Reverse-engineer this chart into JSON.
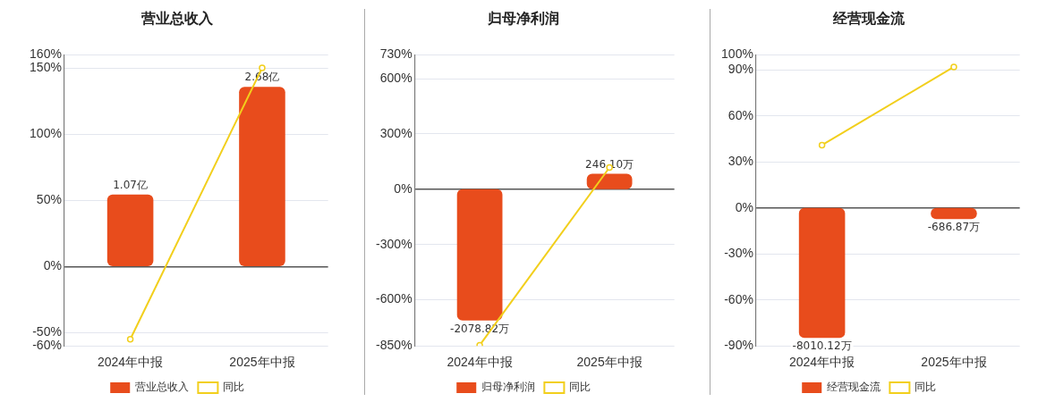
{
  "chart_data": [
    {
      "type": "bar",
      "title": "营业总收入",
      "categories": [
        "2024年中报",
        "2025年中报"
      ],
      "ylim": [
        -60,
        160
      ],
      "yticks": [
        {
          "value": -60,
          "label": "-60%"
        },
        {
          "value": -50,
          "label": "-50%"
        },
        {
          "value": 0,
          "label": "0%"
        },
        {
          "value": 50,
          "label": "50%"
        },
        {
          "value": 100,
          "label": "100%"
        },
        {
          "value": 150,
          "label": "150%"
        },
        {
          "value": 160,
          "label": "160%"
        }
      ],
      "y2lim": [
        -1.19,
        3.16
      ],
      "grid": "y",
      "legend": "bottom",
      "series": [
        {
          "name": "营业总收入",
          "axis": "y2",
          "color": "#e84c1c",
          "values": [
            1.07,
            2.68
          ],
          "value_labels": [
            "1.07亿",
            "2.68亿"
          ]
        },
        {
          "name": "同比",
          "type": "line",
          "color": "#f2cf1c",
          "marker": "circle",
          "values": [
            -55,
            150
          ]
        }
      ]
    },
    {
      "type": "bar",
      "title": "归母净利润",
      "categories": [
        "2024年中报",
        "2025年中报"
      ],
      "ylim": [
        -850,
        730
      ],
      "yticks": [
        {
          "value": -850,
          "label": "-850%"
        },
        {
          "value": -600,
          "label": "-600%"
        },
        {
          "value": -300,
          "label": "-300%"
        },
        {
          "value": 0,
          "label": "0%"
        },
        {
          "value": 300,
          "label": "300%"
        },
        {
          "value": 600,
          "label": "600%"
        },
        {
          "value": 730,
          "label": "730%"
        }
      ],
      "y2lim": [
        -2482,
        2132
      ],
      "grid": "y",
      "legend": "bottom",
      "series": [
        {
          "name": "归母净利润",
          "axis": "y2",
          "color": "#e84c1c",
          "values": [
            -2078.82,
            246.1
          ],
          "value_labels": [
            "-2078.82万",
            "246.10万"
          ]
        },
        {
          "name": "同比",
          "type": "line",
          "color": "#f2cf1c",
          "marker": "circle",
          "values": [
            -846,
            118
          ]
        }
      ]
    },
    {
      "type": "bar",
      "title": "经营现金流",
      "categories": [
        "2024年中报",
        "2025年中报"
      ],
      "ylim": [
        -90,
        100
      ],
      "yticks": [
        {
          "value": -90,
          "label": "-90%"
        },
        {
          "value": -60,
          "label": "-60%"
        },
        {
          "value": -30,
          "label": "-30%"
        },
        {
          "value": 0,
          "label": "0%"
        },
        {
          "value": 30,
          "label": "30%"
        },
        {
          "value": 60,
          "label": "60%"
        },
        {
          "value": 90,
          "label": "90%"
        },
        {
          "value": 100,
          "label": "100%"
        }
      ],
      "y2lim": [
        -8496,
        9440
      ],
      "grid": "y",
      "legend": "bottom",
      "series": [
        {
          "name": "经营现金流",
          "axis": "y2",
          "color": "#e84c1c",
          "values": [
            -8010.12,
            -686.87
          ],
          "value_labels": [
            "-8010.12万",
            "-686.87万"
          ]
        },
        {
          "name": "同比",
          "type": "line",
          "color": "#f2cf1c",
          "marker": "circle",
          "values": [
            41,
            92
          ]
        }
      ]
    }
  ]
}
